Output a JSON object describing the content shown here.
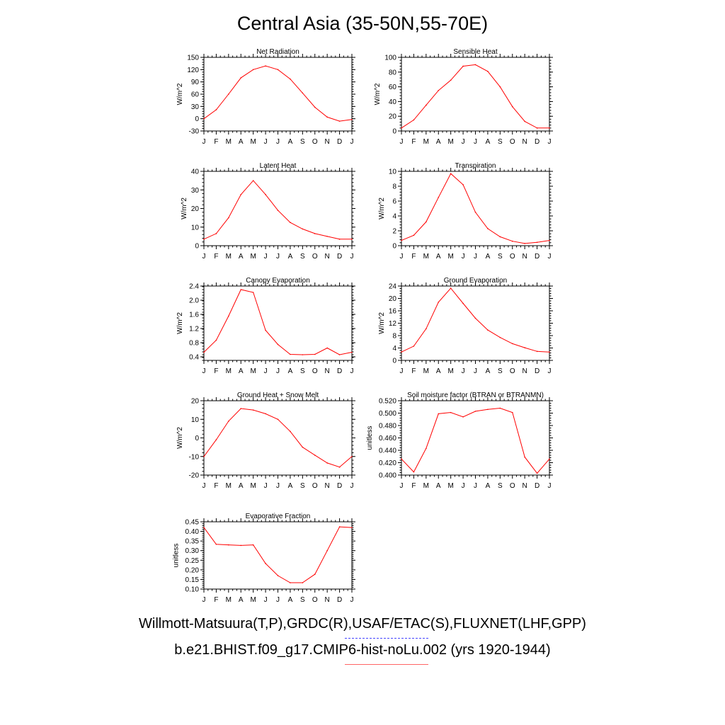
{
  "page": {
    "title": "Central Asia (35-50N,55-70E)",
    "legend": [
      {
        "label": "Willmott-Matsuura(T,P),GRDC(R),USAF/ETAC(S),FLUXNET(LHF,GPP)",
        "color": "#4444ff",
        "style": "dashed"
      },
      {
        "label": "b.e21.BHIST.f09_g17.CMIP6-hist-noLu.002 (yrs 1920-1944)",
        "color": "#ff6666",
        "style": "solid"
      }
    ]
  },
  "chart_data": [
    {
      "type": "line",
      "title": "Net Radiation",
      "ylabel": "W/m^2",
      "categories": [
        "J",
        "F",
        "M",
        "A",
        "M",
        "J",
        "J",
        "A",
        "S",
        "O",
        "N",
        "D",
        "J"
      ],
      "ylim": [
        -30,
        150
      ],
      "yticks": [
        -30,
        0,
        30,
        60,
        90,
        120,
        150
      ],
      "yticklabels": [
        "-30",
        "0",
        "30",
        "60",
        "90",
        "120",
        "150"
      ],
      "color": "#ff0000",
      "values": [
        0,
        22,
        60,
        100,
        120,
        129,
        120,
        97,
        63,
        28,
        4,
        -6,
        -2
      ]
    },
    {
      "type": "line",
      "title": "Sensible Heat",
      "ylabel": "W/m^2",
      "categories": [
        "J",
        "F",
        "M",
        "A",
        "M",
        "J",
        "J",
        "A",
        "S",
        "O",
        "N",
        "D",
        "J"
      ],
      "ylim": [
        0,
        100
      ],
      "yticks": [
        0,
        20,
        40,
        60,
        80,
        100
      ],
      "yticklabels": [
        "0",
        "20",
        "40",
        "60",
        "80",
        "100"
      ],
      "color": "#ff0000",
      "values": [
        4,
        15,
        35,
        55,
        69,
        88,
        90,
        81,
        60,
        33,
        13,
        4,
        4
      ]
    },
    {
      "type": "line",
      "title": "Latent Heat",
      "ylabel": "W/m^2",
      "categories": [
        "J",
        "F",
        "M",
        "A",
        "M",
        "J",
        "J",
        "A",
        "S",
        "O",
        "N",
        "D",
        "J"
      ],
      "ylim": [
        0,
        40
      ],
      "yticks": [
        0,
        10,
        20,
        30,
        40
      ],
      "yticklabels": [
        "0",
        "10",
        "20",
        "30",
        "40"
      ],
      "color": "#ff0000",
      "values": [
        3.5,
        6.5,
        15,
        27.5,
        35,
        27.5,
        19,
        12.5,
        9,
        6.5,
        5,
        3.5,
        3.5
      ]
    },
    {
      "type": "line",
      "title": "Transpiration",
      "ylabel": "W/m^2",
      "categories": [
        "J",
        "F",
        "M",
        "A",
        "M",
        "J",
        "J",
        "A",
        "S",
        "O",
        "N",
        "D",
        "J"
      ],
      "ylim": [
        0,
        10
      ],
      "yticks": [
        0,
        2,
        4,
        6,
        8,
        10
      ],
      "yticklabels": [
        "0",
        "2",
        "4",
        "6",
        "8",
        "10"
      ],
      "color": "#ff0000",
      "values": [
        0.7,
        1.4,
        3.2,
        6.5,
        9.7,
        8.2,
        4.5,
        2.3,
        1.2,
        0.6,
        0.3,
        0.45,
        0.7
      ]
    },
    {
      "type": "line",
      "title": "Canopy Evaporation",
      "ylabel": "W/m^2",
      "categories": [
        "J",
        "F",
        "M",
        "A",
        "M",
        "J",
        "J",
        "A",
        "S",
        "O",
        "N",
        "D",
        "J"
      ],
      "ylim": [
        0.3,
        2.4
      ],
      "yticks": [
        0.4,
        0.8,
        1.2,
        1.6,
        2.0,
        2.4
      ],
      "yticklabels": [
        "0.4",
        "0.8",
        "1.2",
        "1.6",
        "2.0",
        "2.4"
      ],
      "color": "#ff0000",
      "values": [
        0.53,
        0.87,
        1.55,
        2.3,
        2.22,
        1.15,
        0.75,
        0.47,
        0.46,
        0.47,
        0.65,
        0.46,
        0.53
      ]
    },
    {
      "type": "line",
      "title": "Ground Evaporation",
      "ylabel": "W/m^2",
      "categories": [
        "J",
        "F",
        "M",
        "A",
        "M",
        "J",
        "J",
        "A",
        "S",
        "O",
        "N",
        "D",
        "J"
      ],
      "ylim": [
        0,
        24
      ],
      "yticks": [
        0,
        4,
        8,
        12,
        16,
        20,
        24
      ],
      "yticklabels": [
        "0",
        "4",
        "8",
        "12",
        "16",
        "20",
        "24"
      ],
      "color": "#ff0000",
      "values": [
        2.7,
        4.6,
        10.2,
        18.8,
        23.3,
        18.4,
        13.6,
        9.8,
        7.4,
        5.4,
        4.1,
        2.9,
        2.7
      ]
    },
    {
      "type": "line",
      "title": "Ground Heat + Snow Melt",
      "ylabel": "W/m^2",
      "categories": [
        "J",
        "F",
        "M",
        "A",
        "M",
        "J",
        "J",
        "A",
        "S",
        "O",
        "N",
        "D",
        "J"
      ],
      "ylim": [
        -20,
        20
      ],
      "yticks": [
        -20,
        -10,
        0,
        10,
        20
      ],
      "yticklabels": [
        "-20",
        "-10",
        "0",
        "10",
        "20"
      ],
      "color": "#ff0000",
      "values": [
        -10,
        -1,
        9,
        15.8,
        15,
        13,
        10,
        3.5,
        -5,
        -9.3,
        -13.5,
        -15.7,
        -10
      ]
    },
    {
      "type": "line",
      "title": "Soil moisture factor (BTRAN or BTRANMN)",
      "ylabel": "unitless",
      "categories": [
        "J",
        "F",
        "M",
        "A",
        "M",
        "J",
        "J",
        "A",
        "S",
        "O",
        "N",
        "D",
        "J"
      ],
      "ylim": [
        0.4,
        0.52
      ],
      "yticks": [
        0.4,
        0.42,
        0.44,
        0.46,
        0.48,
        0.5,
        0.52
      ],
      "yticklabels": [
        "0.400",
        "0.420",
        "0.440",
        "0.460",
        "0.480",
        "0.500",
        "0.520"
      ],
      "color": "#ff0000",
      "values": [
        0.426,
        0.405,
        0.443,
        0.499,
        0.501,
        0.494,
        0.503,
        0.506,
        0.508,
        0.501,
        0.429,
        0.403,
        0.426
      ]
    },
    {
      "type": "line",
      "title": "Evaporative Fraction",
      "ylabel": "unitless",
      "categories": [
        "J",
        "F",
        "M",
        "A",
        "M",
        "J",
        "J",
        "A",
        "S",
        "O",
        "N",
        "D",
        "J"
      ],
      "ylim": [
        0.1,
        0.45
      ],
      "yticks": [
        0.1,
        0.15,
        0.2,
        0.25,
        0.3,
        0.35,
        0.4,
        0.45
      ],
      "yticklabels": [
        "0.10",
        "0.15",
        "0.20",
        "0.25",
        "0.30",
        "0.35",
        "0.40",
        "0.45"
      ],
      "color": "#ff0000",
      "values": [
        0.42,
        0.333,
        0.33,
        0.327,
        0.33,
        0.233,
        0.17,
        0.133,
        0.133,
        0.177,
        0.3,
        0.424,
        0.42
      ]
    }
  ]
}
